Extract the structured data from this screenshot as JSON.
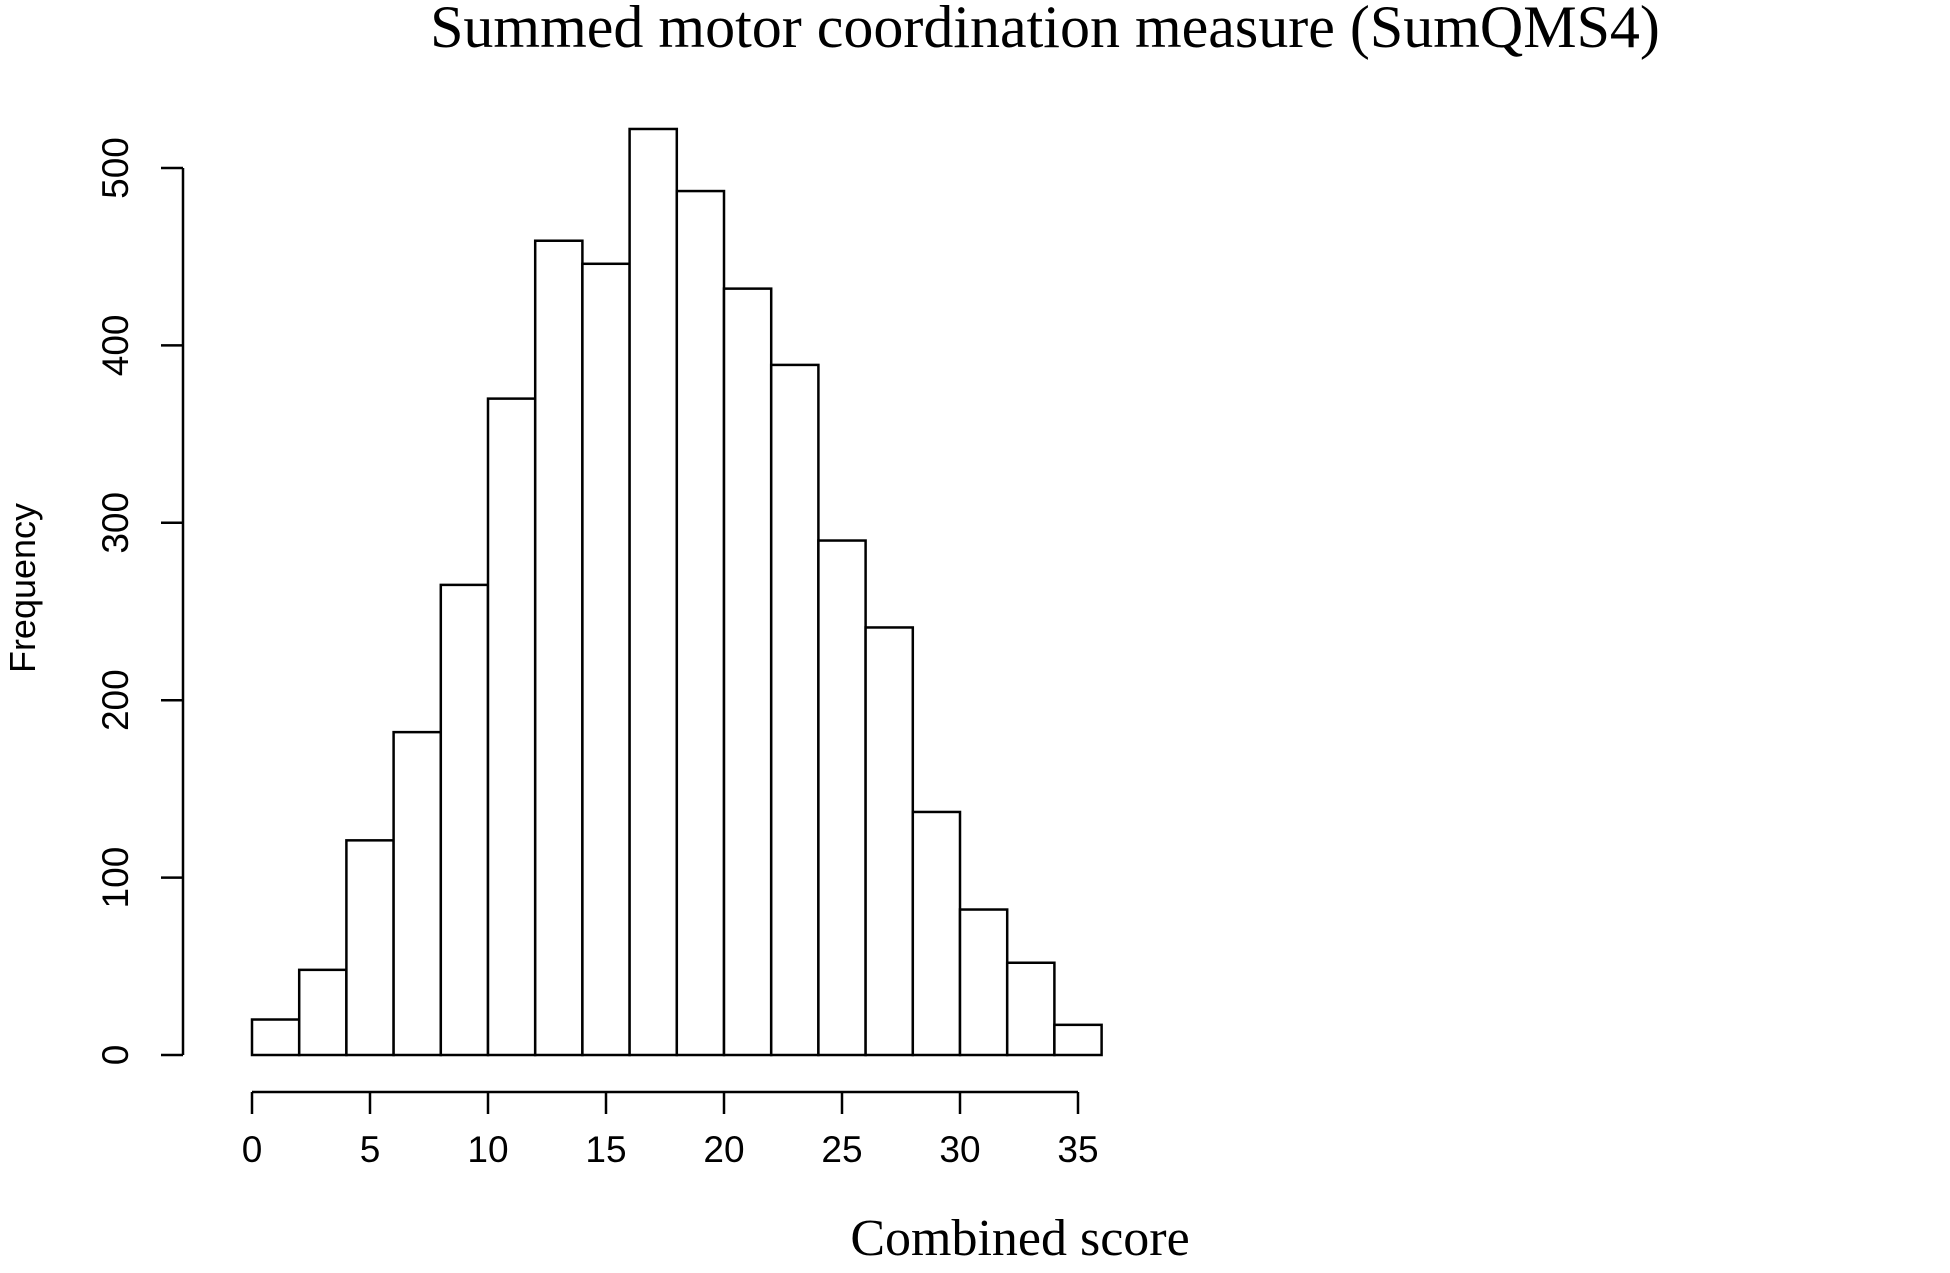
{
  "chart_data": {
    "type": "bar",
    "title": "Summed motor coordination measure (SumQMS4)",
    "xlabel": "Combined score",
    "ylabel": "Frequency",
    "bin_edges": [
      0,
      2,
      4,
      6,
      8,
      10,
      12,
      14,
      16,
      18,
      20,
      22,
      24,
      26,
      28,
      30,
      32,
      34,
      36
    ],
    "values": [
      20,
      48,
      121,
      182,
      265,
      370,
      459,
      446,
      522,
      487,
      432,
      389,
      290,
      241,
      137,
      82,
      52,
      17
    ],
    "xlim": [
      0,
      36
    ],
    "ylim": [
      0,
      522
    ],
    "x_ticks": [
      0,
      5,
      10,
      15,
      20,
      25,
      30,
      35
    ],
    "y_ticks": [
      0,
      100,
      200,
      300,
      400,
      500
    ],
    "grid": false,
    "legend": "none",
    "bar_fill": "#ffffff",
    "bar_edge": "#000000"
  }
}
